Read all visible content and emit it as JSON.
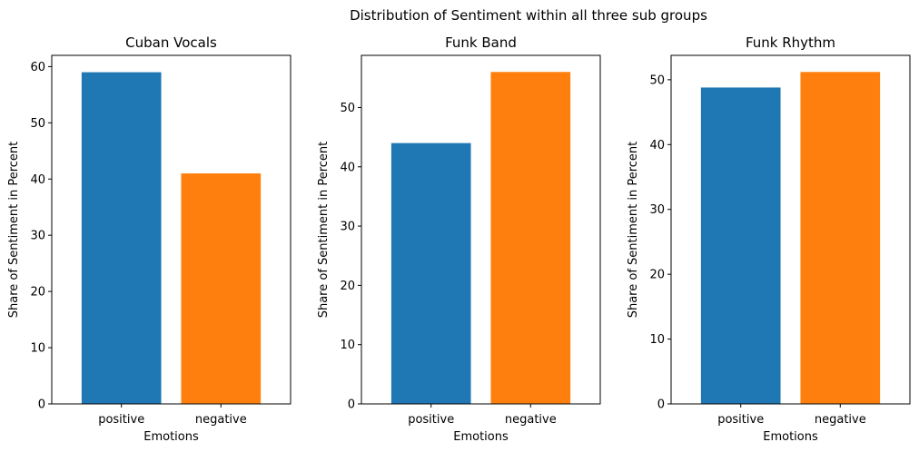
{
  "chart_data": {
    "title": "Distribution of Sentiment within all three sub groups",
    "charts": [
      {
        "type": "bar",
        "title": "Cuban Vocals",
        "categories": [
          "positive",
          "negative"
        ],
        "values": [
          59,
          41
        ],
        "colors": [
          "#1f77b4",
          "#ff7f0e"
        ],
        "xlabel": "Emotions",
        "ylabel": "Share of Sentiment in Percent",
        "ylim": [
          0,
          62
        ],
        "yticks": [
          0,
          10,
          20,
          30,
          40,
          50,
          60
        ],
        "grid": false
      },
      {
        "type": "bar",
        "title": "Funk Band",
        "categories": [
          "positive",
          "negative"
        ],
        "values": [
          44,
          56
        ],
        "colors": [
          "#1f77b4",
          "#ff7f0e"
        ],
        "xlabel": "Emotions",
        "ylabel": "Share of Sentiment in Percent",
        "ylim": [
          0,
          58.8
        ],
        "yticks": [
          0,
          10,
          20,
          30,
          40,
          50
        ],
        "grid": false
      },
      {
        "type": "bar",
        "title": "Funk Rhythm",
        "categories": [
          "positive",
          "negative"
        ],
        "values": [
          48.8,
          51.2
        ],
        "colors": [
          "#1f77b4",
          "#ff7f0e"
        ],
        "xlabel": "Emotions",
        "ylabel": "Share of Sentiment in Percent",
        "ylim": [
          0,
          53.76
        ],
        "yticks": [
          0,
          10,
          20,
          30,
          40,
          50
        ],
        "grid": false
      }
    ]
  }
}
